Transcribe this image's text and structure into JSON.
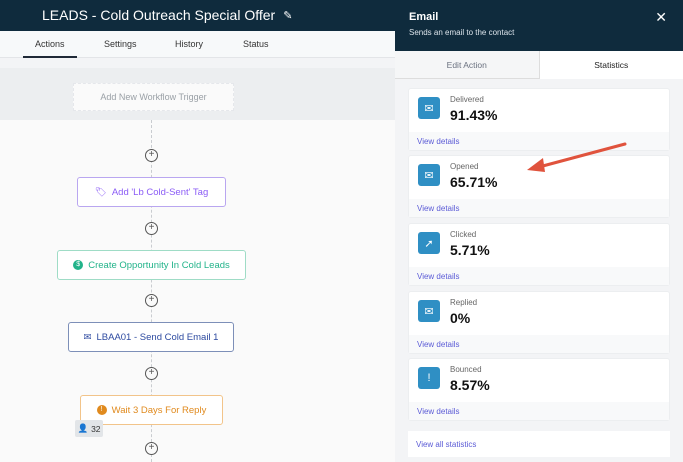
{
  "workflow": {
    "title": "LEADS - Cold Outreach Special Offer",
    "tabs": [
      "Actions",
      "Settings",
      "History",
      "Status"
    ],
    "active_tab": "Actions",
    "trigger_label": "Add New Workflow Trigger",
    "nodes": [
      {
        "label": "Add 'Lb Cold-Sent' Tag",
        "icon": "tag-icon",
        "color": "#8b5cf6"
      },
      {
        "label": "Create Opportunity In Cold Leads",
        "icon": "dollar-icon",
        "color": "#22b38a"
      },
      {
        "label": "LBAA01 - Send Cold Email 1",
        "icon": "email-icon",
        "color": "#2d4aa0"
      },
      {
        "label": "Wait 3 Days For Reply",
        "icon": "clock-icon",
        "color": "#e08a1e"
      }
    ],
    "wait_count": "32"
  },
  "panel": {
    "title": "Email",
    "subtitle": "Sends an email to the contact",
    "tabs": [
      "Edit Action",
      "Statistics"
    ],
    "active_tab": "Statistics",
    "stats": [
      {
        "label": "Delivered",
        "value": "91.43%",
        "icon": "envelope-check-icon"
      },
      {
        "label": "Opened",
        "value": "65.71%",
        "icon": "envelope-open-icon"
      },
      {
        "label": "Clicked",
        "value": "5.71%",
        "icon": "cursor-click-icon"
      },
      {
        "label": "Replied",
        "value": "0%",
        "icon": "envelope-reply-icon"
      },
      {
        "label": "Bounced",
        "value": "8.57%",
        "icon": "alert-icon"
      }
    ],
    "view_details": "View details",
    "view_all": "View all statistics"
  }
}
